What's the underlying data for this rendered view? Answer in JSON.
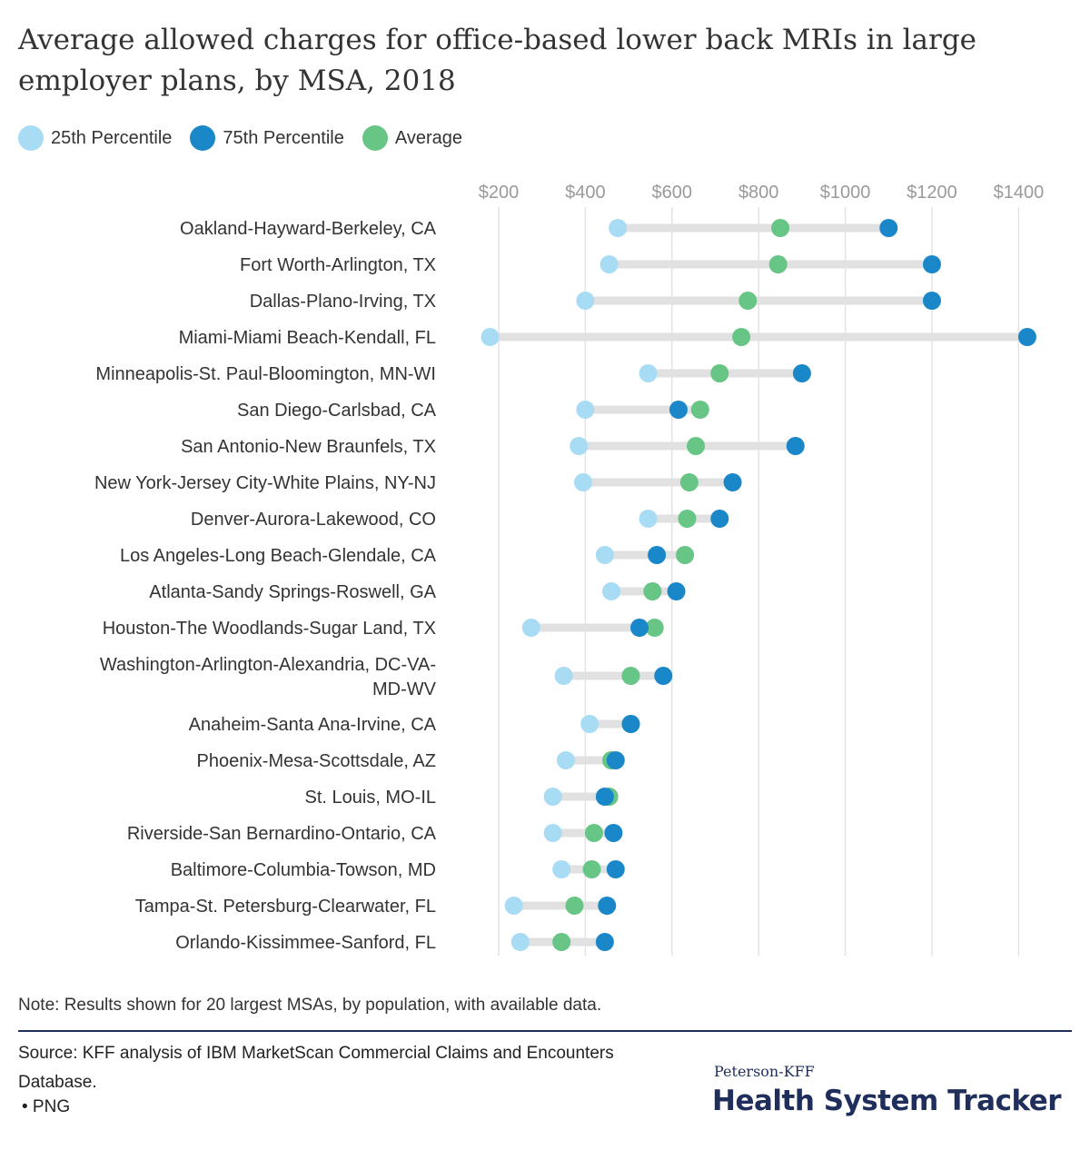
{
  "header": {
    "title": "Average allowed charges for office-based lower back MRIs in large employer plans, by MSA, 2018"
  },
  "legend": {
    "items": [
      {
        "label": "25th Percentile",
        "color": "#a8dcf5"
      },
      {
        "label": "75th Percentile",
        "color": "#1a87c9"
      },
      {
        "label": "Average",
        "color": "#67c585"
      }
    ]
  },
  "chart_data": {
    "type": "dot-range",
    "title": "Average allowed charges for office-based lower back MRIs in large employer plans, by MSA, 2018",
    "xlabel": "",
    "ylabel": "",
    "x_ticks": [
      200,
      400,
      600,
      800,
      1000,
      1200,
      1400
    ],
    "x_tick_labels": [
      "$200",
      "$400",
      "$600",
      "$800",
      "$1000",
      "$1200",
      "$1400"
    ],
    "xlim": [
      150,
      1470
    ],
    "grid": true,
    "legend_position": "top-left",
    "categories": [
      "Oakland-Hayward-Berkeley, CA",
      "Fort Worth-Arlington, TX",
      "Dallas-Plano-Irving, TX",
      "Miami-Miami Beach-Kendall, FL",
      "Minneapolis-St. Paul-Bloomington, MN-WI",
      "San Diego-Carlsbad, CA",
      "San Antonio-New Braunfels, TX",
      "New York-Jersey City-White Plains, NY-NJ",
      "Denver-Aurora-Lakewood, CO",
      "Los Angeles-Long Beach-Glendale, CA",
      "Atlanta-Sandy Springs-Roswell, GA",
      "Houston-The Woodlands-Sugar Land, TX",
      "Washington-Arlington-Alexandria, DC-VA-MD-WV",
      "Anaheim-Santa Ana-Irvine, CA",
      "Phoenix-Mesa-Scottsdale, AZ",
      "St. Louis, MO-IL",
      "Riverside-San Bernardino-Ontario, CA",
      "Baltimore-Columbia-Towson, MD",
      "Tampa-St. Petersburg-Clearwater, FL",
      "Orlando-Kissimmee-Sanford, FL"
    ],
    "series": [
      {
        "name": "25th Percentile",
        "color": "#a8dcf5",
        "values": [
          475,
          455,
          400,
          180,
          545,
          400,
          385,
          395,
          545,
          445,
          460,
          275,
          350,
          410,
          355,
          325,
          325,
          345,
          235,
          250
        ]
      },
      {
        "name": "75th Percentile",
        "color": "#1a87c9",
        "values": [
          1100,
          1200,
          1200,
          1420,
          900,
          615,
          885,
          740,
          710,
          565,
          610,
          525,
          580,
          505,
          470,
          445,
          465,
          470,
          450,
          445
        ]
      },
      {
        "name": "Average",
        "color": "#67c585",
        "values": [
          850,
          845,
          775,
          760,
          710,
          665,
          655,
          640,
          635,
          630,
          555,
          560,
          505,
          505,
          460,
          455,
          420,
          415,
          375,
          345
        ]
      }
    ]
  },
  "footer": {
    "note": "Note: Results shown for 20 largest MSAs, by population, with available data.",
    "source": "Source: KFF analysis of IBM MarketScan Commercial Claims and Encounters Database.",
    "png_link": "• PNG",
    "brand_top": "Peterson-KFF",
    "brand_main": "Health System Tracker"
  }
}
